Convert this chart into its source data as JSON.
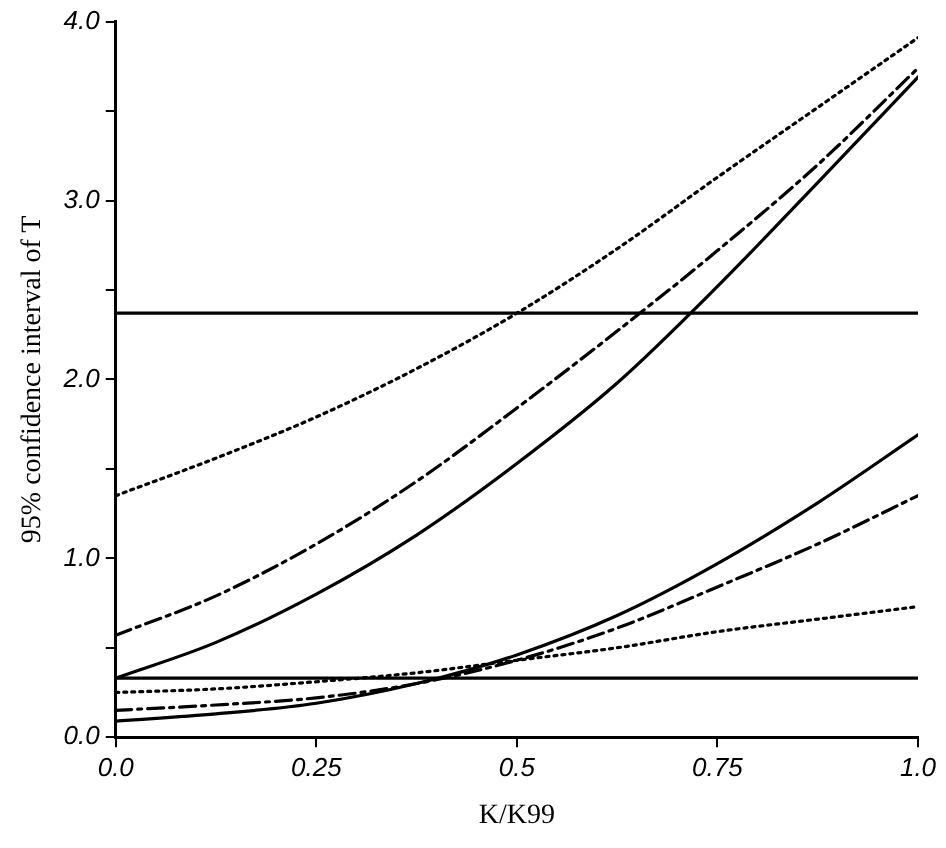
{
  "chart_data": {
    "type": "line",
    "xlabel": "K/K99",
    "ylabel": "95% confidence interval of T",
    "x": [
      0,
      0.125,
      0.25,
      0.375,
      0.5,
      0.625,
      0.75,
      0.875,
      1
    ],
    "series": [
      {
        "color": "#000000",
        "line_style": "dotted",
        "values": [
          1.35,
          1.56,
          1.79,
          2.06,
          2.37,
          2.73,
          3.13,
          3.52,
          3.91
        ]
      },
      {
        "color": "#000000",
        "line_style": "dashed",
        "values": [
          0.57,
          0.79,
          1.08,
          1.43,
          1.84,
          2.27,
          2.72,
          3.2,
          3.74
        ]
      },
      {
        "color": "#000000",
        "line_style": "solid",
        "values": [
          0.33,
          0.53,
          0.8,
          1.13,
          1.53,
          1.98,
          2.52,
          3.1,
          3.69
        ]
      },
      {
        "color": "#000000",
        "line_style": "solid",
        "values": [
          0.09,
          0.13,
          0.19,
          0.3,
          0.46,
          0.68,
          0.97,
          1.31,
          1.69
        ]
      },
      {
        "color": "#000000",
        "line_style": "dashed",
        "values": [
          0.15,
          0.18,
          0.22,
          0.3,
          0.43,
          0.61,
          0.84,
          1.08,
          1.35
        ]
      },
      {
        "color": "#000000",
        "line_style": "dotted",
        "values": [
          0.25,
          0.27,
          0.31,
          0.36,
          0.43,
          0.5,
          0.59,
          0.66,
          0.73
        ]
      }
    ],
    "ref_lines": [
      {
        "axis": "y",
        "value": 2.37,
        "color": "#000000"
      },
      {
        "axis": "y",
        "value": 0.33,
        "color": "#000000"
      }
    ],
    "xlim": [
      0,
      1
    ],
    "xticks": [
      {
        "value": 0,
        "label": "0.0"
      },
      0.25,
      {
        "value": 0.5,
        "label": "0.5"
      },
      0.75,
      {
        "value": 1,
        "label": "1.0"
      }
    ],
    "ylim": [
      0,
      4
    ],
    "yticks": [
      {
        "value": 0,
        "label": "0.0"
      },
      {
        "value": 0.5,
        "label": null
      },
      {
        "value": 1,
        "label": "1.0"
      },
      {
        "value": 1.5,
        "label": null
      },
      {
        "value": 2,
        "label": "2.0"
      },
      {
        "value": 2.5,
        "label": null
      },
      {
        "value": 3,
        "label": "3.0"
      },
      {
        "value": 3.5,
        "label": null
      },
      {
        "value": 4,
        "label": "4.0"
      }
    ],
    "grid": false,
    "legend": false,
    "marker": "none"
  }
}
